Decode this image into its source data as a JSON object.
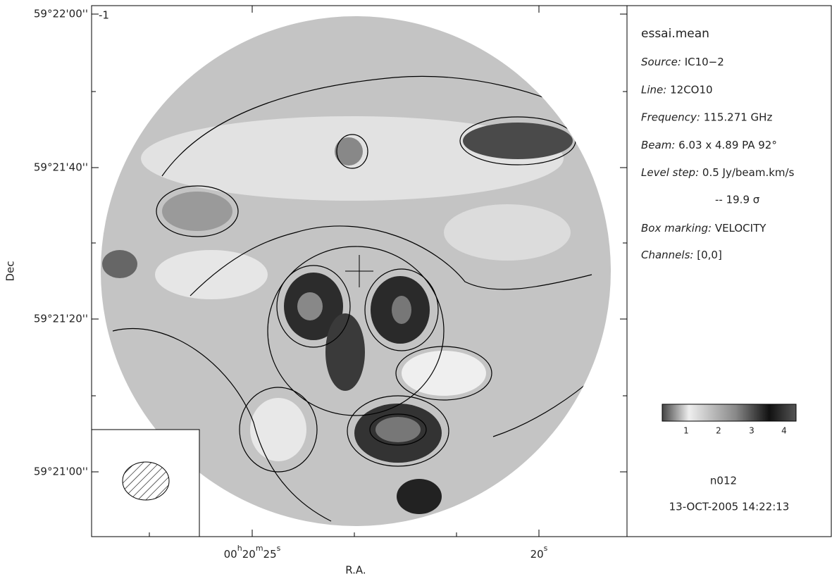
{
  "map": {
    "dec_labels": [
      "59°22'00''",
      "59°21'40''",
      "59°21'20''",
      "59°21'00''"
    ],
    "corner_mark": "-1",
    "ra_labels": [
      [
        "00",
        "h",
        "20",
        "m",
        "25",
        "s"
      ],
      [
        "20",
        "s"
      ]
    ],
    "y_axis_label": "Dec",
    "x_axis_label": "R.A."
  },
  "info": {
    "title": "essai.mean",
    "fields": [
      {
        "key": "Source:",
        "value": "IC10−2"
      },
      {
        "key": "Line:",
        "value": "12CO10"
      },
      {
        "key": "Frequency:",
        "value": "115.271 GHz"
      },
      {
        "key": "Beam:",
        "value": "6.03 x 4.89 PA 92°"
      },
      {
        "key": "Level step:",
        "value": "0.5 Jy/beam.km/s"
      }
    ],
    "sigma": "--   19.9 σ",
    "fields2": [
      {
        "key": "Box marking:",
        "value": "VELOCITY"
      },
      {
        "key": "Channels:",
        "value": "[0,0]"
      }
    ],
    "colorbar_ticks": [
      "1",
      "2",
      "3",
      "4"
    ],
    "id": "n012",
    "date": "13-OCT-2005 14:22:13"
  }
}
